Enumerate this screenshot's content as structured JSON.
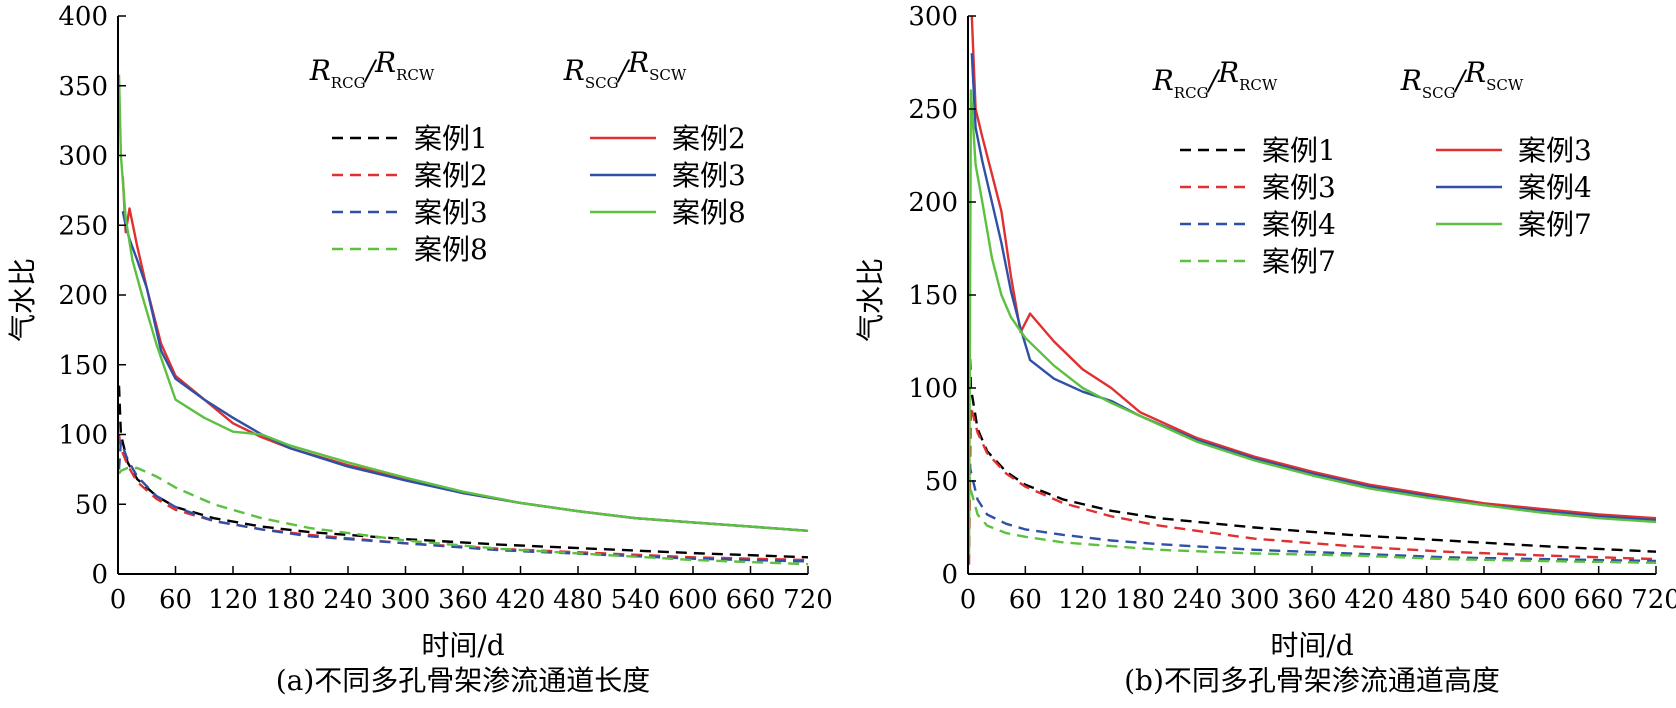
{
  "chart_data": [
    {
      "type": "line",
      "caption": "(a)不同多孔骨架渗流通道长度",
      "xlabel": "时间/d",
      "ylabel": "气水比",
      "xlim": [
        0,
        720
      ],
      "ylim": [
        0,
        400
      ],
      "xticks": [
        0,
        60,
        120,
        180,
        240,
        300,
        360,
        420,
        480,
        540,
        600,
        660,
        720
      ],
      "yticks": [
        0,
        50,
        100,
        150,
        200,
        250,
        300,
        350,
        400
      ],
      "legend_groups": [
        {
          "heading_main": "R",
          "heading_sub": "RCG",
          "heading_sep": "/",
          "heading_main2": "R",
          "heading_sub2": "RCW",
          "style": "dashed"
        },
        {
          "heading_main": "R",
          "heading_sub": "SCG",
          "heading_sep": "/",
          "heading_main2": "R",
          "heading_sub2": "SCW",
          "style": "solid"
        }
      ],
      "series": [
        {
          "name": "案例1",
          "style": "dashed",
          "color": "#000000",
          "x": [
            1,
            3,
            10,
            20,
            40,
            60,
            100,
            150,
            200,
            300,
            400,
            500,
            600,
            720
          ],
          "y": [
            135,
            100,
            80,
            68,
            56,
            48,
            40,
            34,
            30,
            25,
            21,
            18,
            15,
            12
          ]
        },
        {
          "name": "案例2",
          "style": "dashed",
          "color": "#e03030",
          "x": [
            1,
            3,
            10,
            20,
            40,
            60,
            100,
            150,
            200,
            300,
            400,
            500,
            600,
            720
          ],
          "y": [
            100,
            90,
            78,
            66,
            54,
            46,
            38,
            32,
            28,
            22,
            18,
            15,
            12,
            10
          ]
        },
        {
          "name": "案例3",
          "style": "dashed",
          "color": "#3050a8",
          "x": [
            1,
            3,
            10,
            20,
            40,
            60,
            100,
            150,
            200,
            300,
            400,
            500,
            600,
            720
          ],
          "y": [
            75,
            95,
            82,
            70,
            56,
            48,
            38,
            32,
            27,
            22,
            17,
            14,
            11,
            9
          ]
        },
        {
          "name": "案例8",
          "style": "dashed",
          "color": "#5cc040",
          "x": [
            1,
            3,
            10,
            20,
            40,
            60,
            100,
            150,
            200,
            300,
            400,
            500,
            600,
            720
          ],
          "y": [
            72,
            74,
            76,
            76,
            70,
            62,
            50,
            40,
            33,
            24,
            18,
            14,
            10,
            7
          ]
        },
        {
          "name": "案例2",
          "style": "solid",
          "color": "#e03030",
          "x": [
            5,
            8,
            12,
            20,
            30,
            45,
            60,
            90,
            120,
            150,
            180,
            240,
            300,
            360,
            420,
            480,
            540,
            600,
            660,
            720
          ],
          "y": [
            285,
            245,
            262,
            235,
            205,
            165,
            142,
            125,
            108,
            98,
            90,
            78,
            68,
            58,
            51,
            45,
            40,
            37,
            34,
            31
          ]
        },
        {
          "name": "案例3",
          "style": "solid",
          "color": "#3050a8",
          "x": [
            5,
            8,
            12,
            20,
            30,
            45,
            60,
            90,
            120,
            150,
            180,
            240,
            300,
            360,
            420,
            480,
            540,
            600,
            660,
            720
          ],
          "y": [
            260,
            250,
            240,
            225,
            205,
            160,
            140,
            125,
            112,
            100,
            90,
            77,
            67,
            58,
            51,
            45,
            40,
            37,
            34,
            31
          ]
        },
        {
          "name": "案例8",
          "style": "solid",
          "color": "#5cc040",
          "x": [
            1,
            3,
            8,
            15,
            25,
            40,
            60,
            90,
            120,
            150,
            180,
            240,
            300,
            360,
            420,
            480,
            540,
            600,
            660,
            720
          ],
          "y": [
            358,
            300,
            255,
            225,
            200,
            165,
            125,
            112,
            102,
            100,
            92,
            80,
            69,
            59,
            51,
            45,
            40,
            37,
            34,
            31
          ]
        }
      ]
    },
    {
      "type": "line",
      "caption": "(b)不同多孔骨架渗流通道高度",
      "xlabel": "时间/d",
      "ylabel": "气水比",
      "xlim": [
        0,
        720
      ],
      "ylim": [
        0,
        300
      ],
      "xticks": [
        0,
        60,
        120,
        180,
        240,
        300,
        360,
        420,
        480,
        540,
        600,
        660,
        720
      ],
      "yticks": [
        0,
        50,
        100,
        150,
        200,
        250,
        300
      ],
      "legend_groups": [
        {
          "heading_main": "R",
          "heading_sub": "RCG",
          "heading_sep": "/",
          "heading_main2": "R",
          "heading_sub2": "RCW",
          "style": "dashed"
        },
        {
          "heading_main": "R",
          "heading_sub": "SCG",
          "heading_sep": "/",
          "heading_main2": "R",
          "heading_sub2": "SCW",
          "style": "solid"
        }
      ],
      "series": [
        {
          "name": "案例1",
          "style": "dashed",
          "color": "#000000",
          "x": [
            1,
            3,
            10,
            20,
            40,
            60,
            100,
            150,
            200,
            300,
            400,
            500,
            600,
            720
          ],
          "y": [
            135,
            100,
            78,
            66,
            55,
            48,
            40,
            34,
            30,
            25,
            21,
            18,
            15,
            12
          ]
        },
        {
          "name": "案例3",
          "style": "dashed",
          "color": "#e03030",
          "x": [
            1,
            3,
            10,
            20,
            40,
            60,
            100,
            150,
            200,
            300,
            400,
            500,
            600,
            720
          ],
          "y": [
            5,
            90,
            76,
            65,
            54,
            47,
            38,
            31,
            26,
            19,
            15,
            12,
            10,
            8
          ]
        },
        {
          "name": "案例4",
          "style": "dashed",
          "color": "#3050a8",
          "x": [
            1,
            3,
            10,
            20,
            40,
            60,
            100,
            150,
            200,
            300,
            400,
            500,
            600,
            720
          ],
          "y": [
            60,
            55,
            40,
            32,
            27,
            24,
            21,
            18,
            16,
            13,
            11,
            9,
            8,
            7
          ]
        },
        {
          "name": "案例7",
          "style": "dashed",
          "color": "#5cc040",
          "x": [
            1,
            3,
            10,
            20,
            40,
            60,
            100,
            150,
            200,
            300,
            400,
            500,
            600,
            720
          ],
          "y": [
            55,
            45,
            32,
            26,
            22,
            20,
            17,
            15,
            13,
            11,
            10,
            8,
            7,
            6
          ]
        },
        {
          "name": "案例3",
          "style": "solid",
          "color": "#e03030",
          "x": [
            4,
            8,
            15,
            25,
            35,
            45,
            55,
            65,
            90,
            120,
            150,
            180,
            240,
            300,
            360,
            420,
            480,
            540,
            600,
            660,
            720
          ],
          "y": [
            300,
            250,
            235,
            215,
            195,
            160,
            130,
            140,
            125,
            110,
            100,
            87,
            73,
            63,
            55,
            48,
            43,
            38,
            35,
            32,
            30
          ]
        },
        {
          "name": "案例4",
          "style": "solid",
          "color": "#3050a8",
          "x": [
            4,
            8,
            15,
            25,
            35,
            45,
            55,
            65,
            90,
            120,
            150,
            180,
            240,
            300,
            360,
            420,
            480,
            540,
            600,
            660,
            720
          ],
          "y": [
            280,
            240,
            222,
            200,
            178,
            152,
            132,
            115,
            105,
            98,
            93,
            85,
            72,
            62,
            54,
            47,
            42,
            37,
            34,
            31,
            29
          ]
        },
        {
          "name": "案例7",
          "style": "solid",
          "color": "#5cc040",
          "x": [
            1,
            3,
            8,
            15,
            25,
            35,
            45,
            60,
            90,
            120,
            150,
            180,
            240,
            300,
            360,
            420,
            480,
            540,
            600,
            660,
            720
          ],
          "y": [
            10,
            260,
            220,
            200,
            170,
            150,
            138,
            127,
            112,
            100,
            92,
            85,
            71,
            61,
            53,
            46,
            41,
            37,
            33,
            30,
            28
          ]
        }
      ]
    }
  ]
}
